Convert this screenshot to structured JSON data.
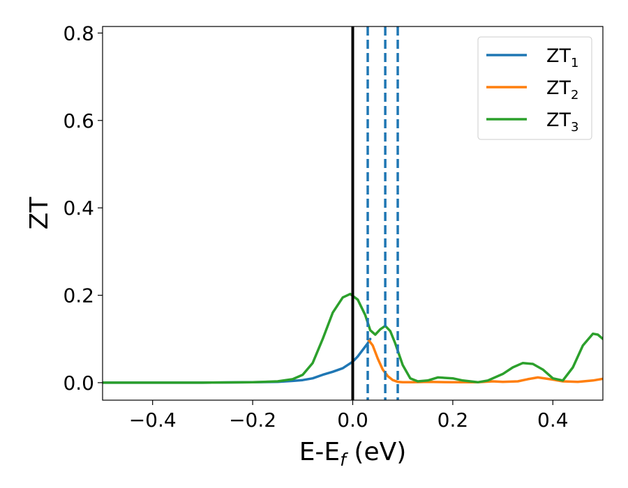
{
  "chart_data": {
    "type": "line",
    "xlabel": {
      "main": "E-E",
      "sub": "f",
      "rest": " (eV)"
    },
    "ylabel": "ZT",
    "xlim": [
      -0.5,
      0.5
    ],
    "ylim": [
      -0.04,
      0.815
    ],
    "x_ticks": [
      -0.4,
      -0.2,
      0.0,
      0.2,
      0.4
    ],
    "x_tick_labels": [
      "−0.4",
      "−0.2",
      "0.0",
      "0.2",
      "0.4"
    ],
    "y_ticks": [
      0.0,
      0.2,
      0.4,
      0.6,
      0.8
    ],
    "y_tick_labels": [
      "0.0",
      "0.2",
      "0.4",
      "0.6",
      "0.8"
    ],
    "legend_position": "top-right",
    "series": [
      {
        "name": "ZT",
        "sub": "1",
        "color": "#1f77b4",
        "x": [
          -0.5,
          -0.3,
          -0.2,
          -0.15,
          -0.12,
          -0.1,
          -0.08,
          -0.06,
          -0.04,
          -0.02,
          0.0,
          0.01,
          0.02,
          0.03,
          0.035
        ],
        "y": [
          0.0,
          0.0,
          0.001,
          0.002,
          0.004,
          0.006,
          0.01,
          0.018,
          0.025,
          0.033,
          0.048,
          0.06,
          0.075,
          0.09,
          0.1
        ]
      },
      {
        "name": "ZT",
        "sub": "2",
        "color": "#ff7f0e",
        "x": [
          0.03,
          0.04,
          0.05,
          0.06,
          0.07,
          0.08,
          0.09,
          0.1,
          0.12,
          0.15,
          0.2,
          0.25,
          0.28,
          0.3,
          0.33,
          0.35,
          0.37,
          0.4,
          0.42,
          0.45,
          0.48,
          0.5
        ],
        "y": [
          0.1,
          0.085,
          0.055,
          0.03,
          0.015,
          0.006,
          0.002,
          0.001,
          0.001,
          0.002,
          0.001,
          0.001,
          0.003,
          0.002,
          0.003,
          0.008,
          0.012,
          0.007,
          0.003,
          0.002,
          0.005,
          0.009
        ]
      },
      {
        "name": "ZT",
        "sub": "3",
        "color": "#2ca02c",
        "x": [
          -0.5,
          -0.3,
          -0.2,
          -0.15,
          -0.12,
          -0.1,
          -0.08,
          -0.06,
          -0.04,
          -0.02,
          -0.005,
          0.01,
          0.025,
          0.035,
          0.045,
          0.055,
          0.065,
          0.075,
          0.085,
          0.1,
          0.115,
          0.13,
          0.15,
          0.17,
          0.2,
          0.22,
          0.25,
          0.27,
          0.3,
          0.32,
          0.34,
          0.36,
          0.38,
          0.4,
          0.42,
          0.44,
          0.46,
          0.48,
          0.49,
          0.5
        ],
        "y": [
          0.0,
          0.0,
          0.001,
          0.003,
          0.008,
          0.018,
          0.045,
          0.1,
          0.16,
          0.195,
          0.203,
          0.19,
          0.155,
          0.12,
          0.11,
          0.122,
          0.13,
          0.118,
          0.09,
          0.04,
          0.01,
          0.003,
          0.005,
          0.012,
          0.01,
          0.005,
          0.001,
          0.005,
          0.02,
          0.035,
          0.045,
          0.043,
          0.03,
          0.01,
          0.005,
          0.035,
          0.085,
          0.112,
          0.11,
          0.1
        ]
      }
    ],
    "vlines": [
      {
        "x": 0.0,
        "color": "#000000",
        "style": "solid"
      },
      {
        "x": 0.03,
        "color": "#1f77b4",
        "style": "dashed"
      },
      {
        "x": 0.065,
        "color": "#1f77b4",
        "style": "dashed"
      },
      {
        "x": 0.09,
        "color": "#1f77b4",
        "style": "dashed"
      }
    ]
  }
}
